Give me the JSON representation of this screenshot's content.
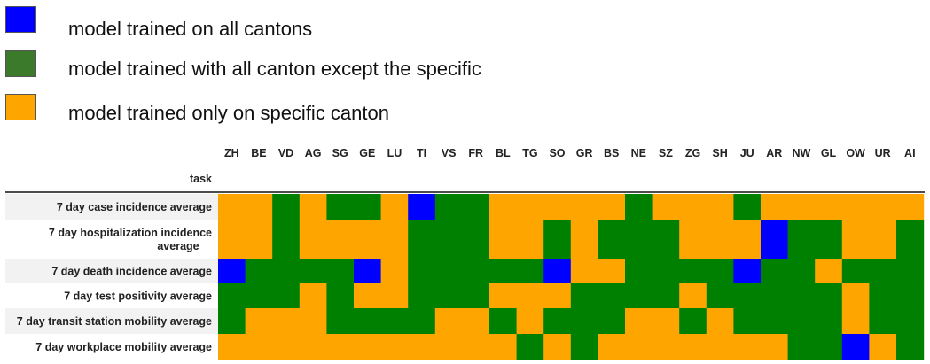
{
  "legend": [
    {
      "label": "model trained on all cantons",
      "color": "#0000FF"
    },
    {
      "label": "model trained with all canton except the specific",
      "color": "#3A7A2A"
    },
    {
      "label": "model trained only on specific canton",
      "color": "#FFA500"
    }
  ],
  "colors": {
    "B": "#0000FF",
    "G": "#008000",
    "O": "#FFA500",
    "row_band": "#F2F2F2",
    "header_line": "#111111"
  },
  "chart_data": {
    "type": "heatmap",
    "index_header": "task",
    "columns": [
      "ZH",
      "BE",
      "VD",
      "AG",
      "SG",
      "GE",
      "LU",
      "TI",
      "VS",
      "FR",
      "BL",
      "TG",
      "SO",
      "GR",
      "BS",
      "NE",
      "SZ",
      "ZG",
      "SH",
      "JU",
      "AR",
      "NW",
      "GL",
      "OW",
      "UR",
      "AI"
    ],
    "rows": [
      {
        "label": [
          "7 day case incidence average"
        ],
        "cells": [
          "O",
          "O",
          "G",
          "O",
          "G",
          "G",
          "O",
          "B",
          "G",
          "G",
          "O",
          "O",
          "O",
          "O",
          "O",
          "G",
          "O",
          "O",
          "O",
          "G",
          "O",
          "O",
          "O",
          "O",
          "O",
          "O"
        ]
      },
      {
        "label": [
          "7 day hospitalization incidence",
          "average"
        ],
        "cells": [
          "O",
          "O",
          "G",
          "O",
          "O",
          "O",
          "O",
          "G",
          "G",
          "G",
          "O",
          "O",
          "G",
          "O",
          "G",
          "G",
          "G",
          "O",
          "O",
          "O",
          "B",
          "G",
          "G",
          "O",
          "O",
          "G"
        ]
      },
      {
        "label": [
          "7 day death incidence average"
        ],
        "cells": [
          "B",
          "G",
          "G",
          "G",
          "G",
          "B",
          "O",
          "G",
          "G",
          "G",
          "G",
          "G",
          "B",
          "O",
          "O",
          "G",
          "G",
          "G",
          "G",
          "B",
          "G",
          "G",
          "O",
          "G",
          "G",
          "G"
        ]
      },
      {
        "label": [
          "7 day test positivity average"
        ],
        "cells": [
          "G",
          "G",
          "G",
          "O",
          "G",
          "O",
          "O",
          "G",
          "G",
          "G",
          "O",
          "O",
          "O",
          "G",
          "G",
          "G",
          "G",
          "O",
          "G",
          "G",
          "G",
          "G",
          "G",
          "O",
          "G",
          "G"
        ]
      },
      {
        "label": [
          "7 day transit station mobility average"
        ],
        "cells": [
          "G",
          "O",
          "O",
          "O",
          "G",
          "G",
          "G",
          "G",
          "O",
          "O",
          "G",
          "O",
          "G",
          "G",
          "G",
          "O",
          "O",
          "G",
          "O",
          "G",
          "G",
          "G",
          "G",
          "O",
          "G",
          "G"
        ]
      },
      {
        "label": [
          "7 day workplace mobility average"
        ],
        "cells": [
          "O",
          "O",
          "O",
          "O",
          "O",
          "O",
          "O",
          "O",
          "O",
          "O",
          "O",
          "G",
          "O",
          "G",
          "O",
          "O",
          "O",
          "O",
          "O",
          "O",
          "O",
          "G",
          "G",
          "B",
          "O",
          "G"
        ]
      }
    ]
  }
}
